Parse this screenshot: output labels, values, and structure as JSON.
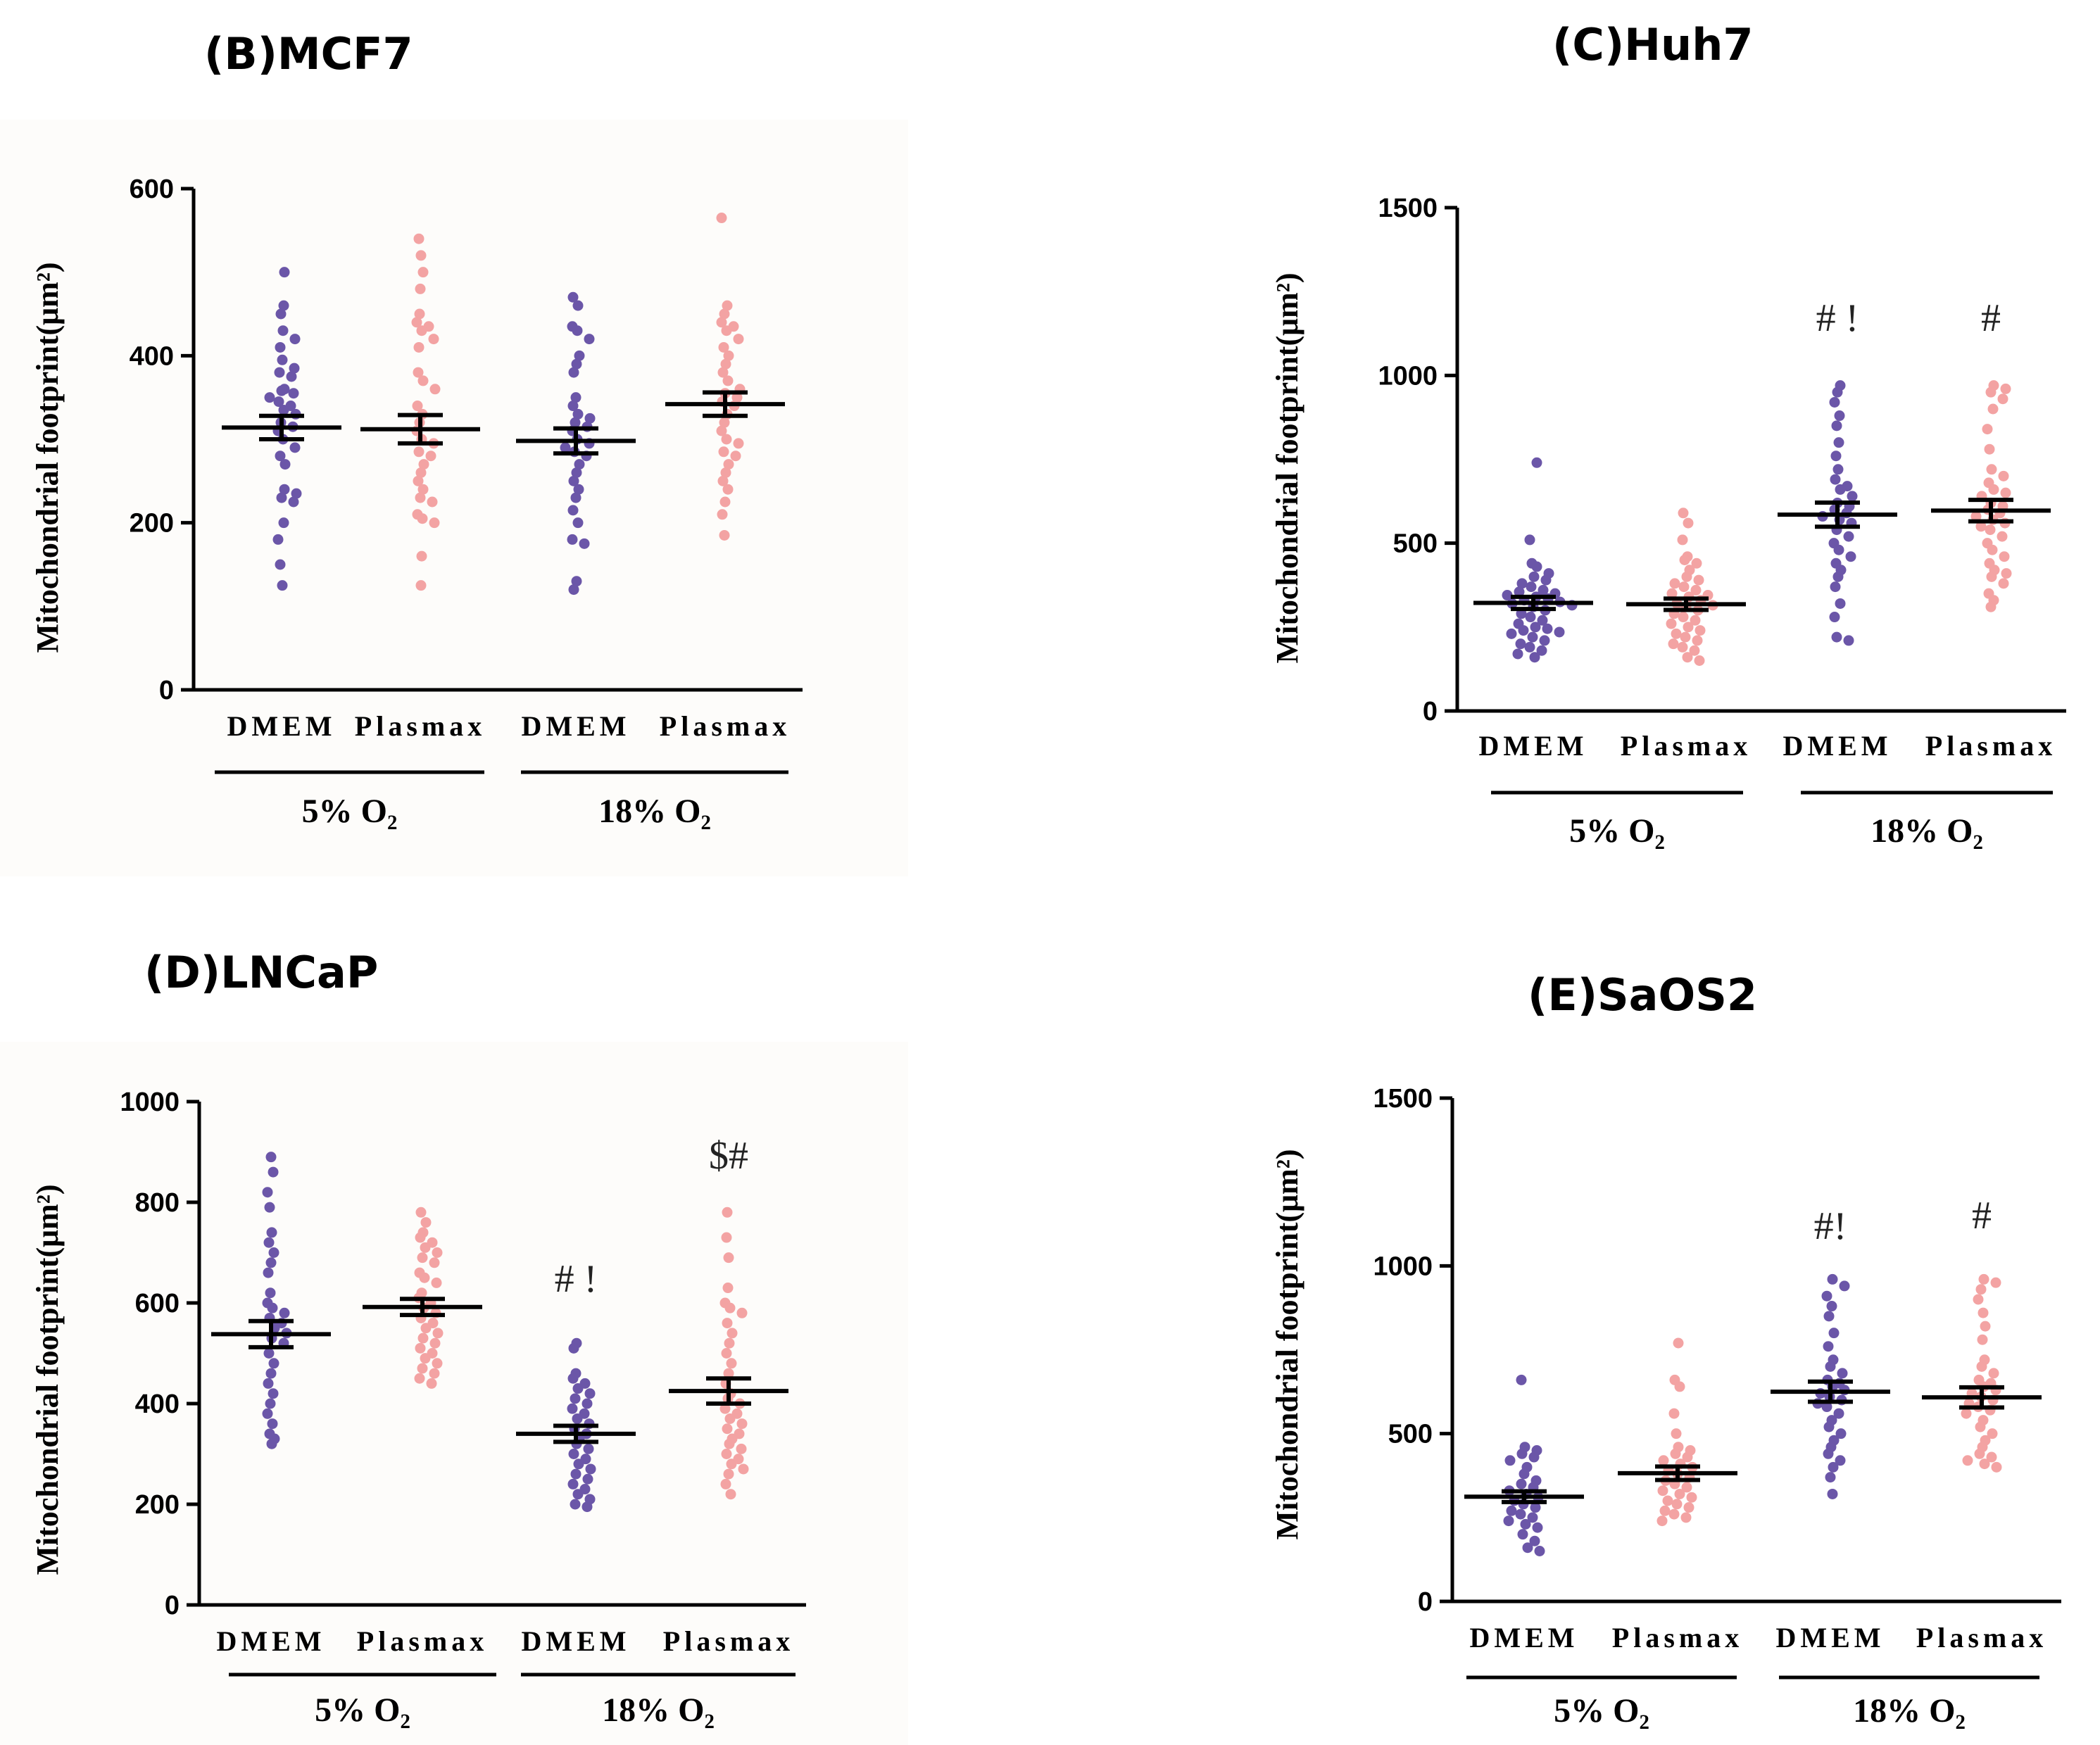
{
  "colors": {
    "dmem": "#6b56a8",
    "plasmax": "#f3a3a3",
    "axis": "#000000",
    "background": "#fdfcfa"
  },
  "chart_data": [
    {
      "type": "scatter",
      "title": "(B)MCF7",
      "ylabel": "Mitochondrial footprint(μm²)",
      "ylim": [
        0,
        600
      ],
      "yticks": [
        "0",
        "200",
        "400",
        "600"
      ],
      "categories": [
        "DMEM",
        "Plasmax",
        "DMEM",
        "Plasmax"
      ],
      "groups": [
        {
          "label": "5% O₂"
        },
        {
          "label": "18% O₂"
        }
      ],
      "annotations": [
        "",
        "",
        "",
        ""
      ],
      "means": [
        314,
        312,
        298,
        342
      ],
      "sems": [
        14,
        17,
        15,
        14
      ],
      "series": [
        {
          "values": [
            500,
            460,
            450,
            430,
            420,
            410,
            395,
            385,
            380,
            375,
            360,
            358,
            355,
            350,
            345,
            340,
            335,
            330,
            320,
            315,
            310,
            300,
            290,
            280,
            270,
            240,
            235,
            230,
            225,
            200,
            180,
            150,
            125
          ]
        },
        {
          "values": [
            540,
            520,
            500,
            480,
            450,
            440,
            435,
            430,
            420,
            410,
            380,
            370,
            360,
            340,
            330,
            320,
            310,
            300,
            295,
            285,
            280,
            270,
            260,
            250,
            240,
            230,
            225,
            210,
            205,
            200,
            160,
            125
          ]
        },
        {
          "values": [
            470,
            460,
            435,
            430,
            420,
            400,
            390,
            380,
            350,
            340,
            330,
            325,
            320,
            315,
            310,
            300,
            295,
            290,
            285,
            280,
            270,
            260,
            250,
            240,
            230,
            215,
            200,
            180,
            175,
            130,
            120
          ]
        },
        {
          "values": [
            565,
            460,
            450,
            440,
            435,
            430,
            420,
            410,
            400,
            390,
            380,
            370,
            360,
            355,
            350,
            345,
            340,
            330,
            320,
            310,
            300,
            295,
            285,
            280,
            270,
            260,
            250,
            240,
            225,
            210,
            185
          ]
        }
      ]
    },
    {
      "type": "scatter",
      "title": "(C)Huh7",
      "ylabel": "Mitochondrial footprint(μm²)",
      "ylim": [
        0,
        1500
      ],
      "yticks": [
        "0",
        "500",
        "1000",
        "1500"
      ],
      "categories": [
        "DMEM",
        "Plasmax",
        "DMEM",
        "Plasmax"
      ],
      "groups": [
        {
          "label": "5% O₂"
        },
        {
          "label": "18% O₂"
        }
      ],
      "annotations": [
        "",
        "",
        "# !",
        "#"
      ],
      "means": [
        322,
        318,
        585,
        597
      ],
      "sems": [
        18,
        17,
        36,
        32
      ],
      "series": [
        {
          "values": [
            740,
            510,
            440,
            430,
            410,
            400,
            390,
            380,
            370,
            360,
            355,
            350,
            345,
            340,
            335,
            330,
            325,
            320,
            315,
            310,
            300,
            290,
            280,
            270,
            260,
            250,
            245,
            240,
            235,
            230,
            220,
            210,
            200,
            190,
            180,
            170,
            160
          ]
        },
        {
          "values": [
            590,
            560,
            510,
            460,
            450,
            440,
            420,
            400,
            390,
            380,
            370,
            360,
            350,
            345,
            340,
            330,
            320,
            315,
            310,
            300,
            290,
            280,
            270,
            260,
            250,
            240,
            230,
            220,
            210,
            200,
            190,
            180,
            160,
            150
          ]
        },
        {
          "values": [
            970,
            950,
            920,
            880,
            850,
            800,
            760,
            720,
            690,
            670,
            660,
            640,
            620,
            610,
            600,
            590,
            580,
            570,
            560,
            540,
            520,
            500,
            480,
            460,
            440,
            420,
            400,
            370,
            320,
            280,
            220,
            210
          ]
        },
        {
          "values": [
            970,
            960,
            950,
            930,
            900,
            840,
            780,
            720,
            700,
            680,
            660,
            650,
            640,
            620,
            610,
            600,
            590,
            580,
            570,
            560,
            550,
            540,
            520,
            500,
            480,
            460,
            440,
            420,
            410,
            400,
            380,
            350,
            330,
            310
          ]
        }
      ]
    },
    {
      "type": "scatter",
      "title": "(D)LNCaP",
      "ylabel": "Mitochondrial footprint(μm²)",
      "ylim": [
        0,
        1000
      ],
      "yticks": [
        "0",
        "200",
        "400",
        "600",
        "800",
        "1000"
      ],
      "categories": [
        "DMEM",
        "Plasmax",
        "DMEM",
        "Plasmax"
      ],
      "groups": [
        {
          "label": "5% O₂"
        },
        {
          "label": "18% O₂"
        }
      ],
      "annotations": [
        "",
        "",
        "# !",
        "$#"
      ],
      "means": [
        538,
        592,
        340,
        425
      ],
      "sems": [
        26,
        16,
        16,
        25
      ],
      "series": [
        {
          "values": [
            890,
            860,
            820,
            790,
            740,
            720,
            700,
            680,
            660,
            620,
            600,
            590,
            580,
            570,
            560,
            550,
            540,
            530,
            520,
            500,
            480,
            460,
            440,
            420,
            400,
            380,
            360,
            340,
            330,
            320
          ]
        },
        {
          "values": [
            780,
            760,
            740,
            730,
            720,
            710,
            700,
            690,
            680,
            660,
            650,
            640,
            620,
            610,
            600,
            590,
            580,
            570,
            560,
            550,
            540,
            530,
            520,
            510,
            500,
            490,
            480,
            470,
            460,
            450,
            440
          ]
        },
        {
          "values": [
            520,
            510,
            460,
            450,
            440,
            430,
            420,
            410,
            400,
            390,
            380,
            370,
            360,
            350,
            340,
            330,
            320,
            310,
            300,
            290,
            280,
            270,
            260,
            250,
            240,
            230,
            220,
            210,
            200,
            195
          ]
        },
        {
          "values": [
            780,
            730,
            690,
            630,
            600,
            590,
            580,
            560,
            540,
            520,
            500,
            480,
            460,
            440,
            420,
            410,
            400,
            390,
            380,
            370,
            360,
            350,
            340,
            330,
            320,
            310,
            300,
            290,
            280,
            270,
            260,
            240,
            220
          ]
        }
      ]
    },
    {
      "type": "scatter",
      "title": "(E)SaOS2",
      "ylabel": "Mitochondrial footprint(μm²)",
      "ylim": [
        0,
        1500
      ],
      "yticks": [
        "0",
        "500",
        "1000",
        "1500"
      ],
      "categories": [
        "DMEM",
        "Plasmax",
        "DMEM",
        "Plasmax"
      ],
      "groups": [
        {
          "label": "5% O₂"
        },
        {
          "label": "18% O₂"
        }
      ],
      "annotations": [
        "",
        "",
        "#!",
        "#"
      ],
      "means": [
        312,
        382,
        625,
        608
      ],
      "sems": [
        16,
        20,
        30,
        30
      ],
      "series": [
        {
          "values": [
            660,
            460,
            450,
            440,
            430,
            420,
            400,
            380,
            360,
            350,
            340,
            330,
            320,
            310,
            300,
            290,
            280,
            270,
            260,
            250,
            240,
            230,
            220,
            200,
            180,
            160,
            150
          ]
        },
        {
          "values": [
            770,
            660,
            640,
            560,
            500,
            460,
            450,
            440,
            430,
            420,
            410,
            400,
            390,
            380,
            370,
            360,
            350,
            340,
            330,
            320,
            310,
            300,
            290,
            280,
            270,
            260,
            250,
            240
          ]
        },
        {
          "values": [
            960,
            940,
            910,
            880,
            850,
            800,
            760,
            720,
            700,
            680,
            660,
            650,
            640,
            630,
            620,
            610,
            600,
            590,
            580,
            560,
            540,
            520,
            500,
            480,
            460,
            440,
            420,
            400,
            370,
            320
          ]
        },
        {
          "values": [
            960,
            950,
            930,
            900,
            860,
            820,
            780,
            720,
            700,
            680,
            660,
            650,
            640,
            630,
            620,
            610,
            600,
            590,
            580,
            570,
            560,
            540,
            520,
            500,
            480,
            460,
            440,
            430,
            420,
            410,
            400
          ]
        }
      ]
    }
  ]
}
